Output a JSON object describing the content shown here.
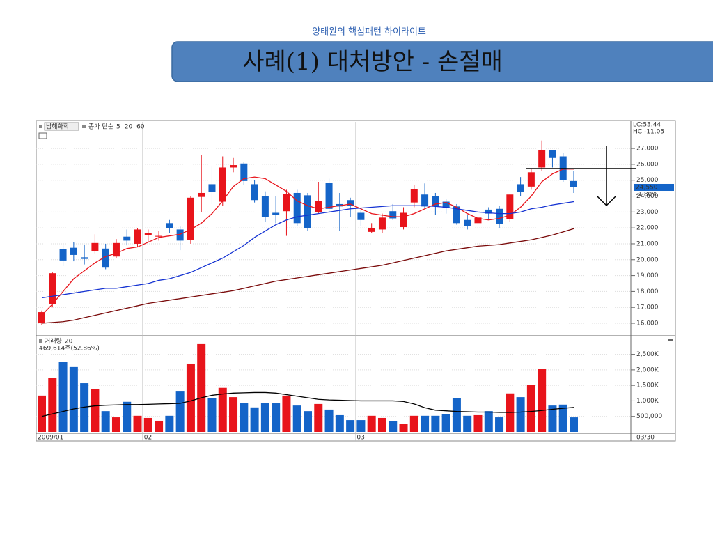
{
  "header": {
    "subtitle": "양태원의 핵심패턴 하이라이트",
    "title": "사례(1) 대처방안 - 손절매"
  },
  "chart_data": [
    {
      "type": "candlestick",
      "name": "남해화학",
      "legend_prefix": "종가 단순",
      "up_color": "#e8141b",
      "down_color": "#1464c8",
      "categories": [
        "2009/01",
        null,
        null,
        null,
        null,
        null,
        null,
        null,
        null,
        null,
        "02",
        null,
        null,
        null,
        null,
        null,
        null,
        null,
        null,
        null,
        null,
        null,
        null,
        null,
        null,
        null,
        null,
        null,
        null,
        null,
        "03",
        null,
        null,
        null,
        null,
        null,
        null,
        null,
        null,
        null,
        null,
        null,
        null,
        null,
        null,
        null,
        null,
        null,
        null,
        null,
        null
      ],
      "current_date": "03/30",
      "open": [
        16000,
        17200,
        20650,
        20750,
        20150,
        20550,
        20700,
        20200,
        21450,
        21000,
        21550,
        21450,
        22300,
        21900,
        21250,
        23950,
        24750,
        23650,
        25800,
        26050,
        24750,
        24000,
        22950,
        23050,
        24200,
        24050,
        23000,
        24850,
        23500,
        23750,
        22950,
        21750,
        21900,
        23050,
        22050,
        23600,
        24100,
        24000,
        23650,
        23350,
        22500,
        22300,
        23150,
        23200,
        22550,
        24750,
        24600,
        25800,
        26900,
        26500,
        24950
      ],
      "high": [
        16800,
        19200,
        20900,
        21100,
        20950,
        21600,
        21000,
        21300,
        21900,
        22000,
        21900,
        21800,
        22500,
        22100,
        24000,
        26600,
        25900,
        26500,
        26400,
        26150,
        25000,
        24300,
        24000,
        24400,
        24400,
        24200,
        24900,
        25100,
        24200,
        23900,
        23100,
        22300,
        22900,
        23500,
        23300,
        24700,
        24800,
        24200,
        23800,
        23500,
        22800,
        22700,
        23300,
        23400,
        24100,
        25200,
        25700,
        27500,
        26900,
        26700,
        25600
      ],
      "low": [
        15900,
        17000,
        19600,
        19900,
        19700,
        20400,
        19400,
        20100,
        20900,
        20800,
        21100,
        21200,
        21700,
        20600,
        21000,
        23000,
        23500,
        23400,
        25500,
        24700,
        23600,
        22400,
        22300,
        21500,
        22100,
        21800,
        22900,
        22900,
        21800,
        22700,
        22100,
        21700,
        21700,
        22500,
        21900,
        23300,
        23200,
        22800,
        22900,
        22200,
        21900,
        22200,
        22500,
        22000,
        22400,
        24000,
        24400,
        25600,
        25800,
        24900,
        24200
      ],
      "close": [
        16700,
        19150,
        19950,
        20300,
        20050,
        21050,
        19500,
        21050,
        21200,
        21900,
        21700,
        21500,
        22000,
        21200,
        23900,
        24200,
        24250,
        25800,
        25950,
        24950,
        23750,
        22700,
        22800,
        24150,
        22300,
        22000,
        23700,
        23200,
        23350,
        23400,
        22500,
        22000,
        22650,
        22600,
        22950,
        24450,
        23350,
        23350,
        23250,
        22300,
        22100,
        22650,
        22900,
        22250,
        24100,
        24250,
        25500,
        26900,
        26400,
        25000,
        24550
      ],
      "series": [
        {
          "name": "5",
          "color": "#e8141b",
          "values": [
            16500,
            17200,
            18000,
            18800,
            19300,
            19800,
            20200,
            20400,
            20700,
            20800,
            21100,
            21400,
            21500,
            21600,
            21900,
            22300,
            22900,
            23700,
            24600,
            25100,
            25200,
            25100,
            24700,
            24300,
            23700,
            23400,
            23200,
            23300,
            23400,
            23500,
            23200,
            22900,
            22800,
            22700,
            22700,
            22900,
            23200,
            23500,
            23600,
            23300,
            22900,
            22600,
            22500,
            22600,
            22800,
            23300,
            24000,
            24900,
            25400,
            25700,
            25700
          ]
        },
        {
          "name": "20",
          "color": "#1432d2",
          "values": [
            17600,
            17700,
            17800,
            17900,
            18000,
            18100,
            18200,
            18200,
            18300,
            18400,
            18500,
            18700,
            18800,
            19000,
            19200,
            19500,
            19800,
            20100,
            20500,
            20900,
            21400,
            21800,
            22200,
            22500,
            22700,
            22800,
            22900,
            23000,
            23100,
            23200,
            23250,
            23300,
            23350,
            23400,
            23400,
            23400,
            23400,
            23350,
            23300,
            23200,
            23100,
            23000,
            22950,
            22900,
            22900,
            23000,
            23200,
            23300,
            23450,
            23550,
            23650
          ]
        },
        {
          "name": "60",
          "color": "#7a0a0a",
          "values": [
            16000,
            16050,
            16100,
            16200,
            16350,
            16500,
            16650,
            16800,
            16950,
            17100,
            17250,
            17350,
            17450,
            17550,
            17650,
            17750,
            17850,
            17950,
            18050,
            18200,
            18350,
            18500,
            18650,
            18750,
            18850,
            18950,
            19050,
            19150,
            19250,
            19350,
            19450,
            19550,
            19650,
            19800,
            19950,
            20100,
            20250,
            20400,
            20550,
            20650,
            20750,
            20850,
            20900,
            20950,
            21050,
            21150,
            21250,
            21400,
            21550,
            21750,
            21950
          ]
        }
      ],
      "ylim": [
        15300,
        28670
      ],
      "yticks": [
        {
          "value": 16000,
          "label": "16,000"
        },
        {
          "value": 17000,
          "label": "17,000"
        },
        {
          "value": 18000,
          "label": "18,000"
        },
        {
          "value": 19000,
          "label": "19,000"
        },
        {
          "value": 20000,
          "label": "20,000"
        },
        {
          "value": 21000,
          "label": "21,000"
        },
        {
          "value": 22000,
          "label": "22,000"
        },
        {
          "value": 23000,
          "label": "23,000"
        },
        {
          "value": 24000,
          "label": "24,000"
        },
        {
          "value": 25000,
          "label": "25,000"
        },
        {
          "value": 26000,
          "label": "26,000"
        },
        {
          "value": 27000,
          "label": "27,000"
        }
      ],
      "grid": true,
      "price_tag": "24,550",
      "change_tag": "-1.80%",
      "lc_label": "LC:53.44",
      "hc_label": "HC:-11.05"
    },
    {
      "type": "volume",
      "name": "거래량",
      "info": "469,614주(52.86%)",
      "values": [
        1170000,
        1730000,
        2250000,
        2090000,
        1570000,
        1370000,
        670000,
        470000,
        970000,
        520000,
        450000,
        360000,
        520000,
        1300000,
        2200000,
        2830000,
        1100000,
        1420000,
        1120000,
        920000,
        790000,
        920000,
        920000,
        1170000,
        850000,
        670000,
        900000,
        720000,
        540000,
        380000,
        380000,
        520000,
        450000,
        340000,
        250000,
        520000,
        520000,
        520000,
        580000,
        1080000,
        520000,
        540000,
        670000,
        470000,
        1240000,
        1120000,
        1510000,
        2040000,
        850000,
        880000,
        469614
      ],
      "series": [
        {
          "name": "20",
          "color": "#000000",
          "values": [
            500000,
            580000,
            660000,
            740000,
            800000,
            840000,
            860000,
            870000,
            880000,
            880000,
            890000,
            900000,
            910000,
            920000,
            1000000,
            1100000,
            1180000,
            1220000,
            1250000,
            1260000,
            1270000,
            1270000,
            1250000,
            1200000,
            1150000,
            1100000,
            1050000,
            1030000,
            1020000,
            1010000,
            1000000,
            1000000,
            1000000,
            1000000,
            980000,
            900000,
            780000,
            700000,
            680000,
            660000,
            650000,
            640000,
            640000,
            630000,
            630000,
            640000,
            660000,
            690000,
            730000,
            760000,
            790000
          ]
        }
      ],
      "ylim": [
        0,
        3030000
      ],
      "yticks": [
        {
          "value": 500000,
          "label": "500,000"
        },
        {
          "value": 1000000,
          "label": "1,000K"
        },
        {
          "value": 1500000,
          "label": "1,500K"
        },
        {
          "value": 2000000,
          "label": "2,000K"
        },
        {
          "value": 2500000,
          "label": "2,500K"
        }
      ],
      "grid": true
    }
  ]
}
